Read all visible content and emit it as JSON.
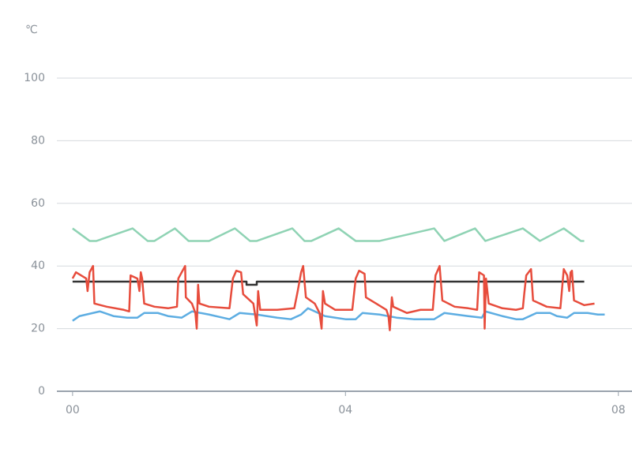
{
  "chart_data": {
    "type": "line",
    "y_unit": "℃",
    "xlim": [
      -0.23,
      8.2
    ],
    "ylim": [
      0,
      100
    ],
    "xticks": [
      {
        "value": 0,
        "label": "00"
      },
      {
        "value": 4,
        "label": "04"
      },
      {
        "value": 8,
        "label": "08"
      }
    ],
    "yticks": [
      0,
      20,
      40,
      60,
      80,
      100
    ],
    "grid": true,
    "series": [
      {
        "color": "#8fd3b4",
        "x": [
          0,
          0.25,
          0.35,
          0.88,
          1.1,
          1.2,
          1.5,
          1.7,
          2.0,
          2.38,
          2.6,
          2.7,
          3.22,
          3.4,
          3.5,
          3.9,
          4.15,
          4.5,
          5.3,
          5.45,
          5.9,
          6.05,
          6.6,
          6.85,
          7.2,
          7.45,
          7.5
        ],
        "values": [
          52,
          48,
          48,
          52,
          48,
          48,
          52,
          48,
          48,
          52,
          48,
          48,
          52,
          48,
          48,
          52,
          48,
          48,
          52,
          48,
          52,
          48,
          52,
          48,
          52,
          48,
          48
        ]
      },
      {
        "color": "#333333",
        "x": [
          0,
          2.55,
          2.55,
          2.7,
          2.7,
          7.5
        ],
        "values": [
          35,
          35,
          34,
          34,
          35,
          35
        ]
      },
      {
        "color": "#5dade2",
        "x": [
          0,
          0.1,
          0.3,
          0.4,
          0.6,
          0.8,
          0.95,
          1.05,
          1.25,
          1.4,
          1.6,
          1.75,
          2.0,
          2.2,
          2.3,
          2.45,
          2.7,
          3.0,
          3.2,
          3.35,
          3.45,
          3.7,
          3.85,
          4.0,
          4.15,
          4.25,
          4.5,
          4.75,
          5.0,
          5.3,
          5.45,
          5.8,
          6.0,
          6.05,
          6.3,
          6.5,
          6.6,
          6.8,
          7.0,
          7.1,
          7.25,
          7.35,
          7.55,
          7.7,
          7.8
        ],
        "values": [
          22.5,
          24,
          25,
          25.5,
          24,
          23.5,
          23.5,
          25,
          25,
          24,
          23.5,
          25.5,
          24.5,
          23.5,
          23,
          25,
          24.5,
          23.5,
          23,
          24.5,
          26.5,
          24,
          23.5,
          23,
          23,
          25,
          24.5,
          23.5,
          23,
          23,
          25,
          24,
          23.5,
          25.5,
          24,
          23,
          23,
          25,
          25,
          24,
          23.5,
          25,
          25,
          24.5,
          24.5
        ]
      },
      {
        "color": "#e74c3c",
        "x": [
          0,
          0.05,
          0.2,
          0.22,
          0.25,
          0.3,
          0.32,
          0.5,
          0.75,
          0.83,
          0.85,
          0.95,
          0.98,
          1.0,
          1.02,
          1.05,
          1.2,
          1.4,
          1.53,
          1.55,
          1.6,
          1.65,
          1.66,
          1.75,
          1.8,
          1.82,
          1.84,
          1.86,
          2.0,
          2.3,
          2.35,
          2.4,
          2.47,
          2.5,
          2.65,
          2.7,
          2.72,
          2.75,
          3.0,
          3.25,
          3.3,
          3.35,
          3.38,
          3.42,
          3.55,
          3.62,
          3.65,
          3.67,
          3.7,
          3.85,
          4.0,
          4.1,
          4.15,
          4.2,
          4.28,
          4.3,
          4.45,
          4.6,
          4.63,
          4.65,
          4.68,
          4.7,
          4.9,
          5.1,
          5.28,
          5.32,
          5.38,
          5.42,
          5.6,
          5.8,
          5.93,
          5.96,
          6.03,
          6.04,
          6.06,
          6.1,
          6.3,
          6.5,
          6.6,
          6.62,
          6.65,
          6.72,
          6.75,
          6.95,
          7.15,
          7.2,
          7.25,
          7.28,
          7.3,
          7.32,
          7.35,
          7.5,
          7.65
        ],
        "values": [
          36,
          38,
          36,
          32,
          38,
          40,
          28,
          27,
          26,
          25.5,
          37,
          36,
          32,
          38,
          36,
          28,
          27,
          26.5,
          27,
          36,
          38,
          40,
          30,
          28,
          25,
          20,
          34,
          28,
          27,
          26.5,
          36,
          38.5,
          38,
          31,
          28,
          21,
          32,
          26,
          26,
          26.5,
          32,
          38,
          40,
          30,
          28,
          25,
          20,
          32,
          28,
          26,
          26,
          26,
          36,
          38.5,
          37.5,
          30,
          28,
          26,
          24,
          19.5,
          30,
          27,
          25,
          26,
          26,
          37,
          40,
          29,
          27,
          26.5,
          26,
          38,
          37,
          20,
          36,
          28,
          26.5,
          26,
          26.5,
          31,
          37,
          39,
          29,
          27,
          26.5,
          39,
          37,
          32,
          38,
          38.5,
          29,
          27.5,
          28
        ]
      }
    ]
  }
}
